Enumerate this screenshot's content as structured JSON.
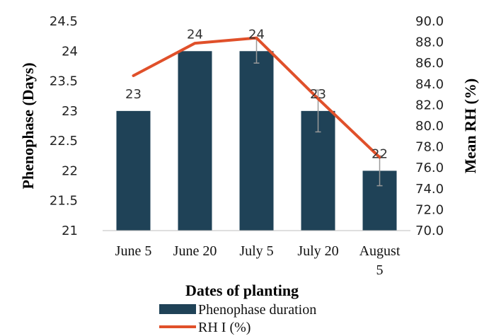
{
  "chart_data": {
    "type": "bar",
    "categories": [
      "June 5",
      "June 20",
      "July 5",
      "July 20",
      "August 5"
    ],
    "category_lines": [
      [
        "June 5"
      ],
      [
        "June 20"
      ],
      [
        "July 5"
      ],
      [
        "July 20"
      ],
      [
        "August",
        "5"
      ]
    ],
    "series": [
      {
        "name": "Phenophase duration",
        "type": "bar",
        "axis": "left",
        "values": [
          23,
          24,
          24,
          23,
          22
        ],
        "data_labels": [
          "23",
          "24",
          "24",
          "23",
          "22"
        ],
        "error": [
          0,
          0,
          0.2,
          0.35,
          0.25
        ],
        "color": "#1f4257"
      },
      {
        "name": "RH I (%)",
        "type": "line",
        "axis": "right",
        "values": [
          84.8,
          87.9,
          88.4,
          82.6,
          77.0
        ],
        "color": "#e0502a"
      }
    ],
    "xlabel": "Dates of planting",
    "ylabel_left": "Phenophase (Days)",
    "ylabel_right": "Mean RH (%)",
    "ylim_left": [
      21,
      24.5
    ],
    "yticks_left": [
      "21",
      "21.5",
      "22",
      "22.5",
      "23",
      "23.5",
      "24",
      "24.5"
    ],
    "ylim_right": [
      70,
      90
    ],
    "yticks_right": [
      "70.0",
      "72.0",
      "74.0",
      "76.0",
      "78.0",
      "80.0",
      "82.0",
      "84.0",
      "86.0",
      "88.0",
      "90.0"
    ],
    "grid": false,
    "legend_position": "bottom"
  }
}
